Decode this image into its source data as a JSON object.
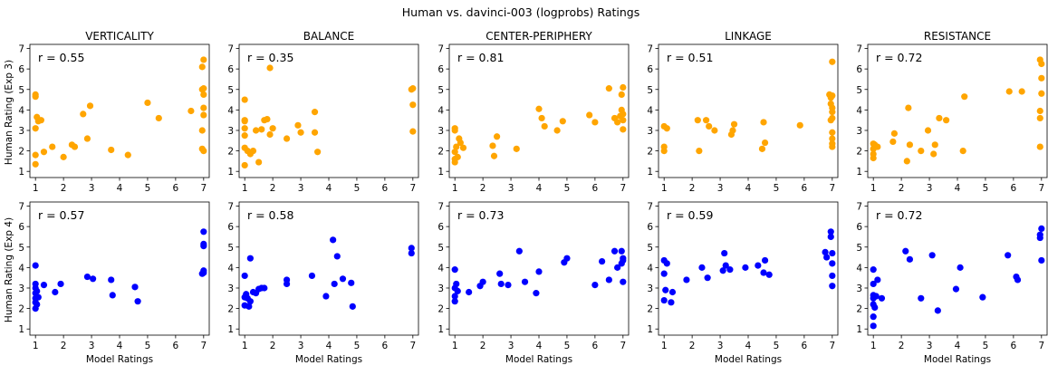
{
  "title": "Human vs. davinci-003 (logprobs) Ratings",
  "xlabel": "Model Ratings",
  "ylabels": [
    "Human Rating (Exp 3)",
    "Human Rating (Exp 4)"
  ],
  "colors": {
    "row1": "#FFA500",
    "row2": "#0000FF"
  },
  "chart_data": [
    {
      "type": "scatter",
      "row": 1,
      "title": "VERTICALITY",
      "annotation": "r = 0.55",
      "xlim": [
        0.8,
        7.2
      ],
      "ylim": [
        0.7,
        7.2
      ],
      "xticks": [
        1,
        2,
        3,
        4,
        5,
        6,
        7
      ],
      "yticks": [
        1,
        2,
        3,
        4,
        5,
        6,
        7
      ],
      "x": [
        1.0,
        1.0,
        1.0,
        1.0,
        1.0,
        1.05,
        1.1,
        1.2,
        1.3,
        1.6,
        2.0,
        2.3,
        2.4,
        2.7,
        2.85,
        2.95,
        3.7,
        4.3,
        5.0,
        5.4,
        6.55,
        6.95,
        6.95,
        6.95,
        6.95,
        7.0,
        7.0,
        7.0,
        7.0,
        7.0,
        7.0
      ],
      "y": [
        4.75,
        4.65,
        3.1,
        1.8,
        1.35,
        3.65,
        3.45,
        3.5,
        1.95,
        2.2,
        1.7,
        2.3,
        2.2,
        3.8,
        2.6,
        4.2,
        2.05,
        1.8,
        4.35,
        3.6,
        3.95,
        6.1,
        5.0,
        3.0,
        2.1,
        6.45,
        4.75,
        5.05,
        4.1,
        3.75,
        2.0
      ]
    },
    {
      "type": "scatter",
      "row": 1,
      "title": "BALANCE",
      "annotation": "r = 0.35",
      "xlim": [
        0.8,
        7.2
      ],
      "ylim": [
        0.7,
        7.2
      ],
      "xticks": [
        1,
        2,
        3,
        4,
        5,
        6,
        7
      ],
      "yticks": [
        1,
        2,
        3,
        4,
        5,
        6,
        7
      ],
      "x": [
        1.0,
        1.0,
        1.0,
        1.0,
        1.0,
        1.0,
        1.0,
        1.1,
        1.2,
        1.3,
        1.4,
        1.5,
        1.6,
        1.7,
        1.8,
        1.9,
        1.9,
        2.0,
        2.5,
        2.9,
        3.0,
        3.5,
        3.5,
        3.6,
        6.95,
        7.0,
        7.0,
        7.0
      ],
      "y": [
        4.5,
        3.5,
        3.45,
        3.1,
        2.75,
        2.15,
        1.3,
        2.0,
        1.85,
        2.0,
        3.0,
        1.45,
        3.05,
        3.5,
        3.55,
        6.05,
        2.8,
        3.1,
        2.6,
        3.25,
        2.9,
        2.9,
        3.9,
        1.95,
        5.0,
        5.05,
        4.25,
        2.95
      ]
    },
    {
      "type": "scatter",
      "row": 1,
      "title": "CENTER-PERIPHERY",
      "annotation": "r = 0.81",
      "xlim": [
        0.8,
        7.2
      ],
      "ylim": [
        0.7,
        7.2
      ],
      "xticks": [
        1,
        2,
        3,
        4,
        5,
        6,
        7
      ],
      "yticks": [
        1,
        2,
        3,
        4,
        5,
        6,
        7
      ],
      "x": [
        1.0,
        1.0,
        1.0,
        1.0,
        1.0,
        1.05,
        1.1,
        1.15,
        1.2,
        1.3,
        2.35,
        2.4,
        2.5,
        3.2,
        4.0,
        4.2,
        4.1,
        4.65,
        4.85,
        5.8,
        6.0,
        6.5,
        6.7,
        6.8,
        6.9,
        6.95,
        6.95,
        7.0,
        7.0,
        7.0,
        7.0
      ],
      "y": [
        3.0,
        3.1,
        1.95,
        1.6,
        1.45,
        2.2,
        1.7,
        2.6,
        2.4,
        2.15,
        2.25,
        1.75,
        2.7,
        2.1,
        4.05,
        3.2,
        3.6,
        3.0,
        3.45,
        3.75,
        3.4,
        5.05,
        3.6,
        3.4,
        3.7,
        4.0,
        4.75,
        5.1,
        3.8,
        3.5,
        3.05
      ]
    },
    {
      "type": "scatter",
      "row": 1,
      "title": "LINKAGE",
      "annotation": "r = 0.51",
      "xlim": [
        0.8,
        7.2
      ],
      "ylim": [
        0.7,
        7.2
      ],
      "xticks": [
        1,
        2,
        3,
        4,
        5,
        6,
        7
      ],
      "yticks": [
        1,
        2,
        3,
        4,
        5,
        6,
        7
      ],
      "x": [
        1.0,
        1.0,
        1.0,
        1.1,
        2.2,
        2.25,
        2.5,
        2.6,
        2.8,
        3.4,
        3.5,
        3.45,
        4.5,
        4.6,
        4.55,
        5.85,
        6.9,
        6.95,
        6.95,
        6.95,
        7.0,
        7.0,
        7.0,
        7.0,
        7.0,
        7.0,
        7.0,
        7.0,
        7.0
      ],
      "y": [
        3.2,
        2.2,
        2.0,
        3.1,
        3.5,
        2.0,
        3.5,
        3.2,
        3.0,
        2.8,
        3.3,
        3.0,
        2.1,
        2.4,
        3.4,
        3.25,
        4.75,
        4.6,
        4.3,
        3.5,
        6.35,
        4.7,
        4.1,
        3.9,
        3.6,
        2.9,
        2.6,
        2.35,
        2.2
      ]
    },
    {
      "type": "scatter",
      "row": 1,
      "title": "RESISTANCE",
      "annotation": "r = 0.72",
      "xlim": [
        0.8,
        7.2
      ],
      "ylim": [
        0.7,
        7.2
      ],
      "xticks": [
        1,
        2,
        3,
        4,
        5,
        6,
        7
      ],
      "yticks": [
        1,
        2,
        3,
        4,
        5,
        6,
        7
      ],
      "x": [
        1.0,
        1.0,
        1.0,
        1.0,
        1.05,
        1.15,
        1.7,
        1.75,
        2.2,
        2.25,
        2.3,
        2.7,
        2.95,
        3.15,
        3.2,
        3.35,
        3.6,
        4.25,
        4.2,
        5.85,
        6.3,
        6.95,
        6.95,
        6.95,
        6.95,
        7.0,
        7.0,
        7.0
      ],
      "y": [
        2.35,
        2.1,
        1.85,
        1.65,
        2.3,
        2.2,
        2.45,
        2.85,
        1.5,
        4.1,
        2.3,
        2.0,
        3.0,
        1.85,
        2.3,
        3.6,
        3.5,
        4.65,
        2.0,
        4.9,
        4.9,
        3.95,
        3.6,
        2.2,
        6.45,
        6.25,
        5.55,
        4.8
      ]
    },
    {
      "type": "scatter",
      "row": 2,
      "title": "",
      "annotation": "r = 0.57",
      "xlim": [
        0.8,
        7.2
      ],
      "ylim": [
        0.7,
        7.2
      ],
      "xticks": [
        1,
        2,
        3,
        4,
        5,
        6,
        7
      ],
      "yticks": [
        1,
        2,
        3,
        4,
        5,
        6,
        7
      ],
      "x": [
        1.0,
        1.0,
        1.0,
        1.0,
        1.0,
        1.0,
        1.0,
        1.05,
        1.05,
        1.1,
        1.3,
        1.7,
        1.9,
        2.85,
        3.05,
        3.7,
        3.75,
        4.55,
        4.65,
        6.95,
        7.0,
        7.0,
        7.0,
        7.0,
        7.0
      ],
      "y": [
        4.1,
        3.2,
        3.0,
        2.75,
        2.5,
        2.3,
        2.0,
        2.85,
        2.2,
        2.55,
        3.15,
        2.8,
        3.2,
        3.55,
        3.45,
        3.4,
        2.65,
        3.05,
        2.35,
        3.7,
        5.75,
        5.15,
        5.05,
        3.85,
        3.75
      ]
    },
    {
      "type": "scatter",
      "row": 2,
      "title": "",
      "annotation": "r = 0.58",
      "xlim": [
        0.8,
        7.2
      ],
      "ylim": [
        0.7,
        7.2
      ],
      "xticks": [
        1,
        2,
        3,
        4,
        5,
        6,
        7
      ],
      "yticks": [
        1,
        2,
        3,
        4,
        5,
        6,
        7
      ],
      "x": [
        1.0,
        1.0,
        1.0,
        1.05,
        1.1,
        1.15,
        1.2,
        1.2,
        1.3,
        1.4,
        1.5,
        1.6,
        1.7,
        2.5,
        2.5,
        3.4,
        3.9,
        4.15,
        4.2,
        4.3,
        4.5,
        4.8,
        4.85,
        6.95,
        6.95
      ],
      "y": [
        3.6,
        2.55,
        2.15,
        2.7,
        2.5,
        2.1,
        4.45,
        2.35,
        2.8,
        2.75,
        2.95,
        3.0,
        3.0,
        3.4,
        3.2,
        3.6,
        2.6,
        5.35,
        3.2,
        4.55,
        3.45,
        3.25,
        2.1,
        4.95,
        4.7
      ]
    },
    {
      "type": "scatter",
      "row": 2,
      "title": "",
      "annotation": "r = 0.73",
      "xlim": [
        0.8,
        7.2
      ],
      "ylim": [
        0.7,
        7.2
      ],
      "xticks": [
        1,
        2,
        3,
        4,
        5,
        6,
        7
      ],
      "yticks": [
        1,
        2,
        3,
        4,
        5,
        6,
        7
      ],
      "x": [
        1.0,
        1.0,
        1.0,
        1.0,
        1.05,
        1.1,
        1.5,
        1.9,
        2.0,
        2.6,
        2.65,
        2.9,
        3.3,
        3.5,
        3.9,
        4.0,
        4.9,
        5.0,
        6.0,
        6.25,
        6.5,
        6.7,
        6.8,
        6.95,
        6.95,
        7.0,
        7.0,
        7.0
      ],
      "y": [
        3.9,
        3.0,
        2.6,
        2.35,
        3.2,
        2.85,
        2.8,
        3.1,
        3.3,
        3.7,
        3.2,
        3.15,
        4.8,
        3.3,
        2.75,
        3.8,
        4.25,
        4.45,
        3.15,
        4.3,
        3.4,
        4.8,
        4.0,
        4.2,
        4.8,
        4.45,
        4.35,
        3.3
      ]
    },
    {
      "type": "scatter",
      "row": 2,
      "title": "",
      "annotation": "r = 0.59",
      "xlim": [
        0.8,
        7.2
      ],
      "ylim": [
        0.7,
        7.2
      ],
      "xticks": [
        1,
        2,
        3,
        4,
        5,
        6,
        7
      ],
      "yticks": [
        1,
        2,
        3,
        4,
        5,
        6,
        7
      ],
      "x": [
        1.0,
        1.0,
        1.0,
        1.05,
        1.1,
        1.25,
        1.3,
        1.8,
        2.35,
        2.55,
        3.1,
        3.15,
        3.2,
        3.35,
        3.9,
        4.35,
        4.55,
        4.6,
        4.75,
        6.75,
        6.8,
        6.95,
        6.95,
        7.0,
        7.0,
        7.0,
        7.0
      ],
      "y": [
        4.35,
        3.7,
        2.4,
        2.9,
        4.2,
        2.3,
        2.8,
        3.4,
        4.0,
        3.5,
        3.85,
        4.7,
        4.1,
        3.9,
        4.0,
        4.1,
        3.75,
        4.35,
        3.65,
        4.75,
        4.5,
        5.5,
        5.75,
        4.7,
        4.2,
        3.6,
        3.1
      ]
    },
    {
      "type": "scatter",
      "row": 2,
      "title": "",
      "annotation": "r = 0.72",
      "xlim": [
        0.8,
        7.2
      ],
      "ylim": [
        0.7,
        7.2
      ],
      "xticks": [
        1,
        2,
        3,
        4,
        5,
        6,
        7
      ],
      "yticks": [
        1,
        2,
        3,
        4,
        5,
        6,
        7
      ],
      "x": [
        1.0,
        1.0,
        1.0,
        1.0,
        1.0,
        1.0,
        1.0,
        1.05,
        1.1,
        1.15,
        1.3,
        2.15,
        2.3,
        2.7,
        3.1,
        3.3,
        3.95,
        4.1,
        4.9,
        5.8,
        6.1,
        6.15,
        6.95,
        6.95,
        7.0,
        7.0
      ],
      "y": [
        3.9,
        3.2,
        2.65,
        2.5,
        2.2,
        1.6,
        1.15,
        2.05,
        2.6,
        3.4,
        2.5,
        4.8,
        4.4,
        2.5,
        4.6,
        1.9,
        2.95,
        4.0,
        2.55,
        4.6,
        3.55,
        3.4,
        5.45,
        5.6,
        5.9,
        4.35
      ]
    }
  ]
}
